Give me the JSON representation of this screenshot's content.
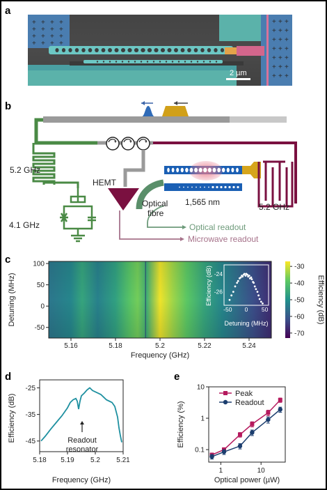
{
  "panels": {
    "a": {
      "letter": "a",
      "scalebar": "2 µm"
    },
    "b": {
      "letter": "b",
      "labels": {
        "f_left": "5.2 GHz",
        "f_filter": "4.1 GHz",
        "hemt": "HEMT",
        "optical_fibre_1": "Optical",
        "optical_fibre_2": "fibre",
        "wavelength": "1,565 nm",
        "f_right": "5.2 GHz",
        "optical_readout": "Optical readout",
        "microwave_readout": "Microwave readout"
      }
    },
    "c": {
      "letter": "c",
      "colorbar_label": "Efficiency (dB)"
    },
    "d": {
      "letter": "d",
      "annotation_1": "Readout",
      "annotation_2": "resonator"
    },
    "e": {
      "letter": "e"
    }
  },
  "colors": {
    "microwave": "#7a1040",
    "green": "#4d8a4a",
    "blue": "#1d5fb0",
    "gold": "#d4aa1a",
    "teal": "#1e90a0",
    "peak": "#b5195d",
    "readout": "#1b3d6e"
  },
  "chart_data": [
    {
      "id": "c",
      "type": "heatmap",
      "xlabel": "Frequency (GHz)",
      "ylabel": "Detuning (MHz)",
      "xticks": [
        "5.16",
        "5.18",
        "5.2",
        "5.22",
        "5.24"
      ],
      "xtick_values": [
        5.16,
        5.18,
        5.2,
        5.22,
        5.24
      ],
      "yticks": [
        "100",
        "50",
        "0",
        "-50"
      ],
      "ytick_values": [
        100,
        50,
        0,
        -50
      ],
      "xlim": [
        5.15,
        5.25
      ],
      "ylim": [
        -75,
        105
      ],
      "colorbar_label": "Efficiency (dB)",
      "colorbar_ticks": [
        "-30",
        "-40",
        "-50",
        "-60",
        "-70"
      ],
      "colorbar_values": [
        -30,
        -40,
        -50,
        -60,
        -70
      ],
      "colorbar_range": [
        -73,
        -27
      ],
      "x_profile_freq": [
        5.15,
        5.16,
        5.165,
        5.172,
        5.18,
        5.186,
        5.19,
        5.194,
        5.2,
        5.206,
        5.212,
        5.22,
        5.228,
        5.235,
        5.242,
        5.25
      ],
      "x_profile_db": [
        -55,
        -52,
        -46,
        -53,
        -47,
        -40,
        -37,
        -44,
        -28,
        -34,
        -39,
        -46,
        -52,
        -57,
        -62,
        -67
      ],
      "inset": {
        "type": "scatter",
        "xlabel": "Detuning (MHz)",
        "ylabel": "Efficiency (dB)",
        "xticks": [
          "-50",
          "0",
          "50"
        ],
        "yticks": [
          "-24",
          "-26"
        ],
        "xlim": [
          -60,
          60
        ],
        "ylim": [
          -27.5,
          -23
        ],
        "x": [
          -45,
          -40,
          -35,
          -30,
          -25,
          -22,
          -18,
          -15,
          -12,
          -10,
          -7,
          -5,
          -2,
          0,
          3,
          5,
          8,
          10,
          13,
          15,
          18,
          20,
          23,
          26,
          30,
          33,
          36,
          40,
          44
        ],
        "y": [
          -26.9,
          -26.4,
          -26.0,
          -25.4,
          -25.0,
          -24.8,
          -24.5,
          -24.4,
          -24.2,
          -24.3,
          -24.1,
          -24.0,
          -24.2,
          -24.0,
          -24.1,
          -24.3,
          -24.2,
          -24.5,
          -24.4,
          -24.6,
          -24.9,
          -25.0,
          -25.4,
          -25.7,
          -26.0,
          -26.4,
          -26.8,
          -27.1,
          -27.3
        ]
      }
    },
    {
      "id": "d",
      "type": "line",
      "xlabel": "Frequency (GHz)",
      "ylabel": "Efficiency (dB)",
      "xticks": [
        "5.18",
        "5.19",
        "5.2",
        "5.21"
      ],
      "xtick_values": [
        5.18,
        5.19,
        5.2,
        5.21
      ],
      "yticks": [
        "-25",
        "-35",
        "-45"
      ],
      "ytick_values": [
        -25,
        -35,
        -45
      ],
      "xlim": [
        5.18,
        5.21
      ],
      "ylim": [
        -49,
        -22
      ],
      "x": [
        5.1805,
        5.182,
        5.184,
        5.186,
        5.188,
        5.19,
        5.191,
        5.192,
        5.193,
        5.1935,
        5.194,
        5.1945,
        5.195,
        5.196,
        5.197,
        5.198,
        5.199,
        5.2,
        5.201,
        5.202,
        5.203,
        5.204,
        5.205,
        5.206,
        5.207,
        5.208,
        5.2085,
        5.209,
        5.2095
      ],
      "y": [
        -45,
        -43.2,
        -40.5,
        -38,
        -35.5,
        -32.5,
        -30.5,
        -29.5,
        -29,
        -30,
        -33,
        -30,
        -28,
        -27,
        -25.8,
        -25,
        -26,
        -26.5,
        -27,
        -27.5,
        -28.5,
        -29.5,
        -30,
        -30.5,
        -32,
        -36,
        -40,
        -43,
        -45.5
      ]
    },
    {
      "id": "e",
      "type": "line",
      "xlabel": "Optical power (µW)",
      "ylabel": "Efficiency (%)",
      "xscale": "log",
      "yscale": "log",
      "xticks": [
        "1",
        "10"
      ],
      "xtick_values": [
        1,
        10
      ],
      "yticks": [
        "10",
        "1",
        "0.1"
      ],
      "ytick_values": [
        10,
        1,
        0.1
      ],
      "xlim": [
        0.5,
        40
      ],
      "ylim": [
        0.04,
        10
      ],
      "legend": "top-left",
      "series": [
        {
          "name": "Peak",
          "x": [
            0.6,
            1.2,
            3,
            6,
            15,
            30
          ],
          "y": [
            0.068,
            0.1,
            0.3,
            0.65,
            1.5,
            3.8
          ],
          "err": [
            0.01,
            0.015,
            0.05,
            0.12,
            0.3,
            0.6
          ]
        },
        {
          "name": "Readout",
          "x": [
            0.6,
            1.2,
            3,
            6,
            15,
            30
          ],
          "y": [
            0.06,
            0.085,
            0.13,
            0.35,
            0.9,
            1.9
          ],
          "err": [
            0.01,
            0.015,
            0.025,
            0.07,
            0.2,
            0.35
          ]
        }
      ]
    }
  ]
}
